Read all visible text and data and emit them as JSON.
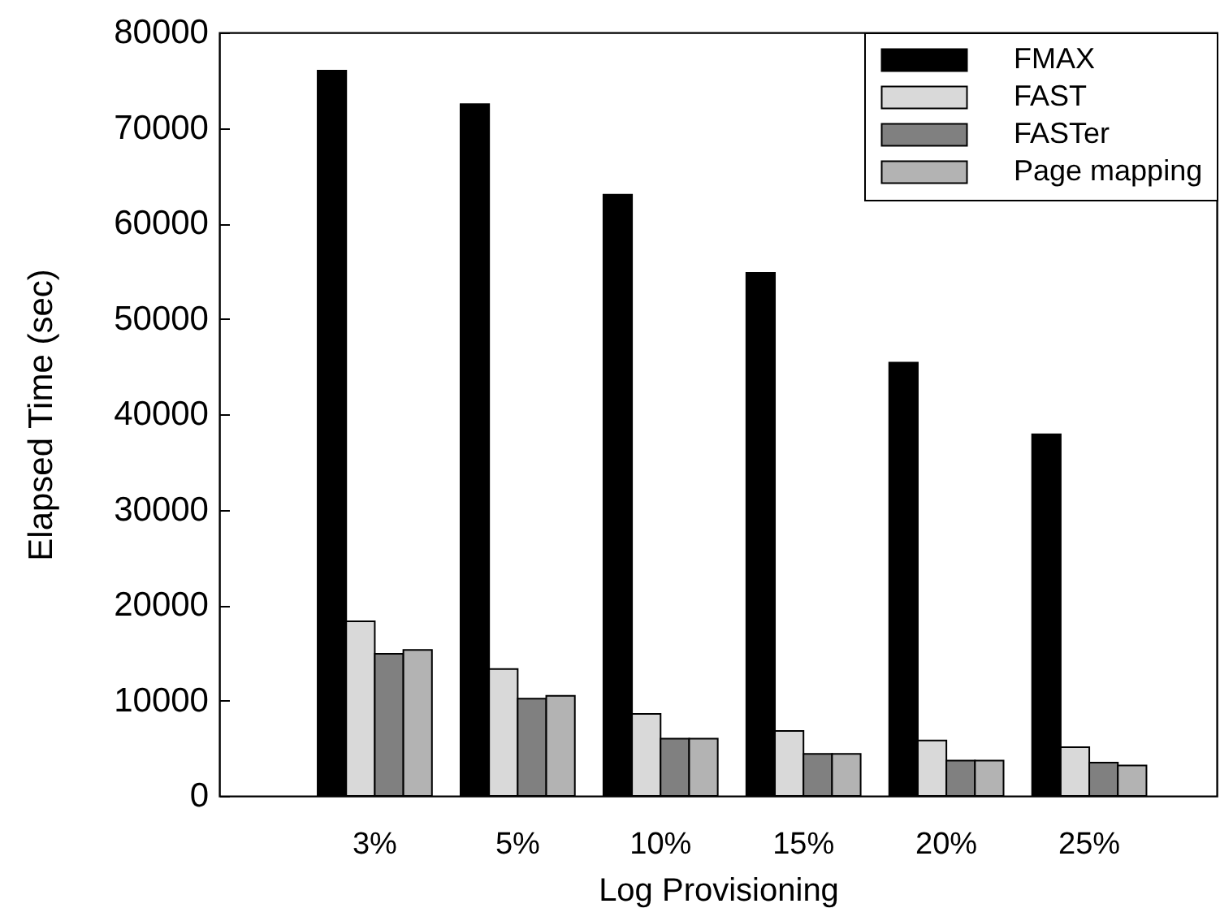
{
  "chart_data": {
    "type": "bar",
    "xlabel": "Log Provisioning",
    "ylabel": "Elapsed Time (sec)",
    "categories": [
      "3%",
      "5%",
      "10%",
      "15%",
      "20%",
      "25%"
    ],
    "series": [
      {
        "name": "FMAX",
        "color": "#000000",
        "values": [
          76000,
          72500,
          63000,
          54800,
          45400,
          37900
        ]
      },
      {
        "name": "FAST",
        "color": "#d9d9d9",
        "values": [
          18300,
          13300,
          8600,
          6800,
          5800,
          5100
        ]
      },
      {
        "name": "FASTer",
        "color": "#808080",
        "values": [
          14900,
          10200,
          6000,
          4400,
          3700,
          3500
        ]
      },
      {
        "name": "Page mapping",
        "color": "#b3b3b3",
        "values": [
          15300,
          10500,
          6000,
          4400,
          3700,
          3200
        ]
      }
    ],
    "ylim": [
      0,
      80000
    ],
    "yticks": [
      0,
      10000,
      20000,
      30000,
      40000,
      50000,
      60000,
      70000,
      80000
    ],
    "legend": "top right"
  }
}
